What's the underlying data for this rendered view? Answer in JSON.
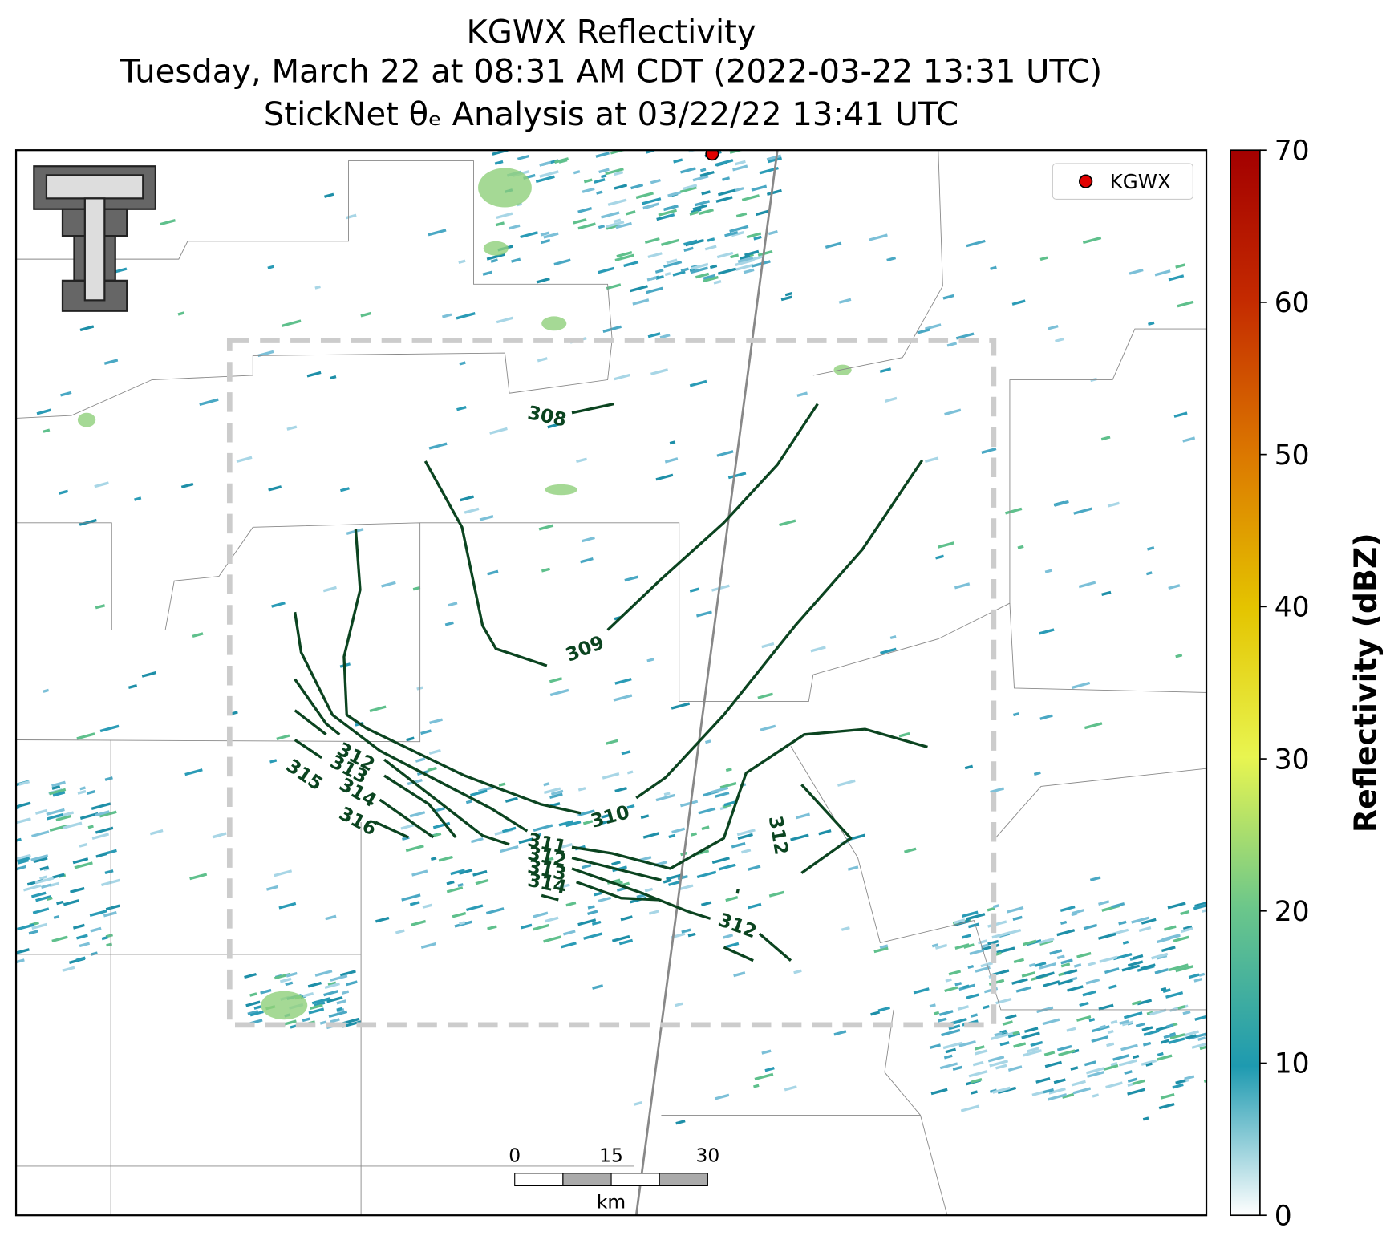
{
  "title": [
    "KGWX Reflectivity",
    "Tuesday, March 22 at 08:31 AM CDT (2022-03-22 13:31 UTC)",
    "StickNet θₑ Analysis at 03/22/22 13:41 UTC"
  ],
  "legend": {
    "label": "KGWX"
  },
  "colorbar": {
    "label": "Reflectivity (dBZ)",
    "lim": [
      0,
      70
    ],
    "ticks": [
      0,
      10,
      20,
      30,
      40,
      50,
      60,
      70
    ]
  },
  "scale_bar": {
    "ticks": [
      0,
      15,
      30
    ],
    "unit": "km"
  },
  "contour_labels": [
    308,
    309,
    310,
    311,
    312,
    313,
    314,
    312,
    313,
    314,
    315,
    316,
    312,
    312
  ]
}
